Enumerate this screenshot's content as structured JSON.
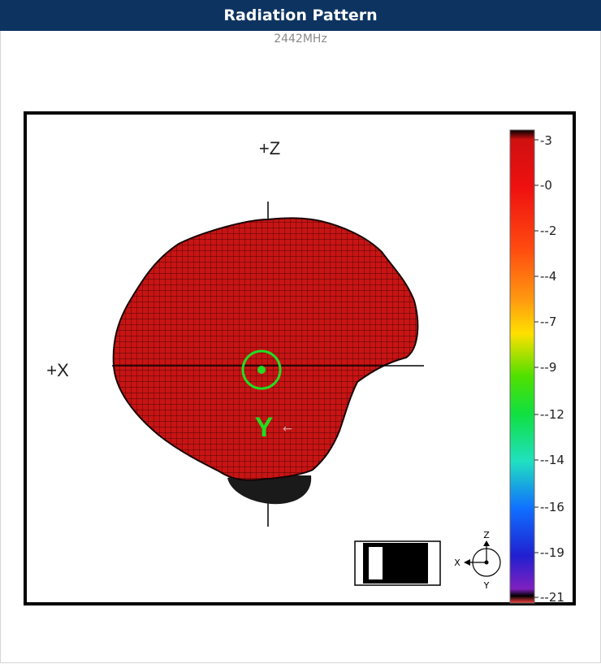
{
  "header": {
    "title": "Radiation Pattern"
  },
  "subtitle": "2442MHz",
  "plot": {
    "axis_labels": {
      "z": "+Z",
      "x": "+X",
      "y": "Y"
    },
    "pattern_color": "#c81414",
    "marker_color": "#22dd22"
  },
  "color_scale": {
    "labels": [
      "-3",
      "-0",
      "--2",
      "--4",
      "--7",
      "--9",
      "--12",
      "--14",
      "--16",
      "--19",
      "--21"
    ]
  },
  "orientation": {
    "x": "X",
    "y": "Y",
    "z": "Z"
  }
}
